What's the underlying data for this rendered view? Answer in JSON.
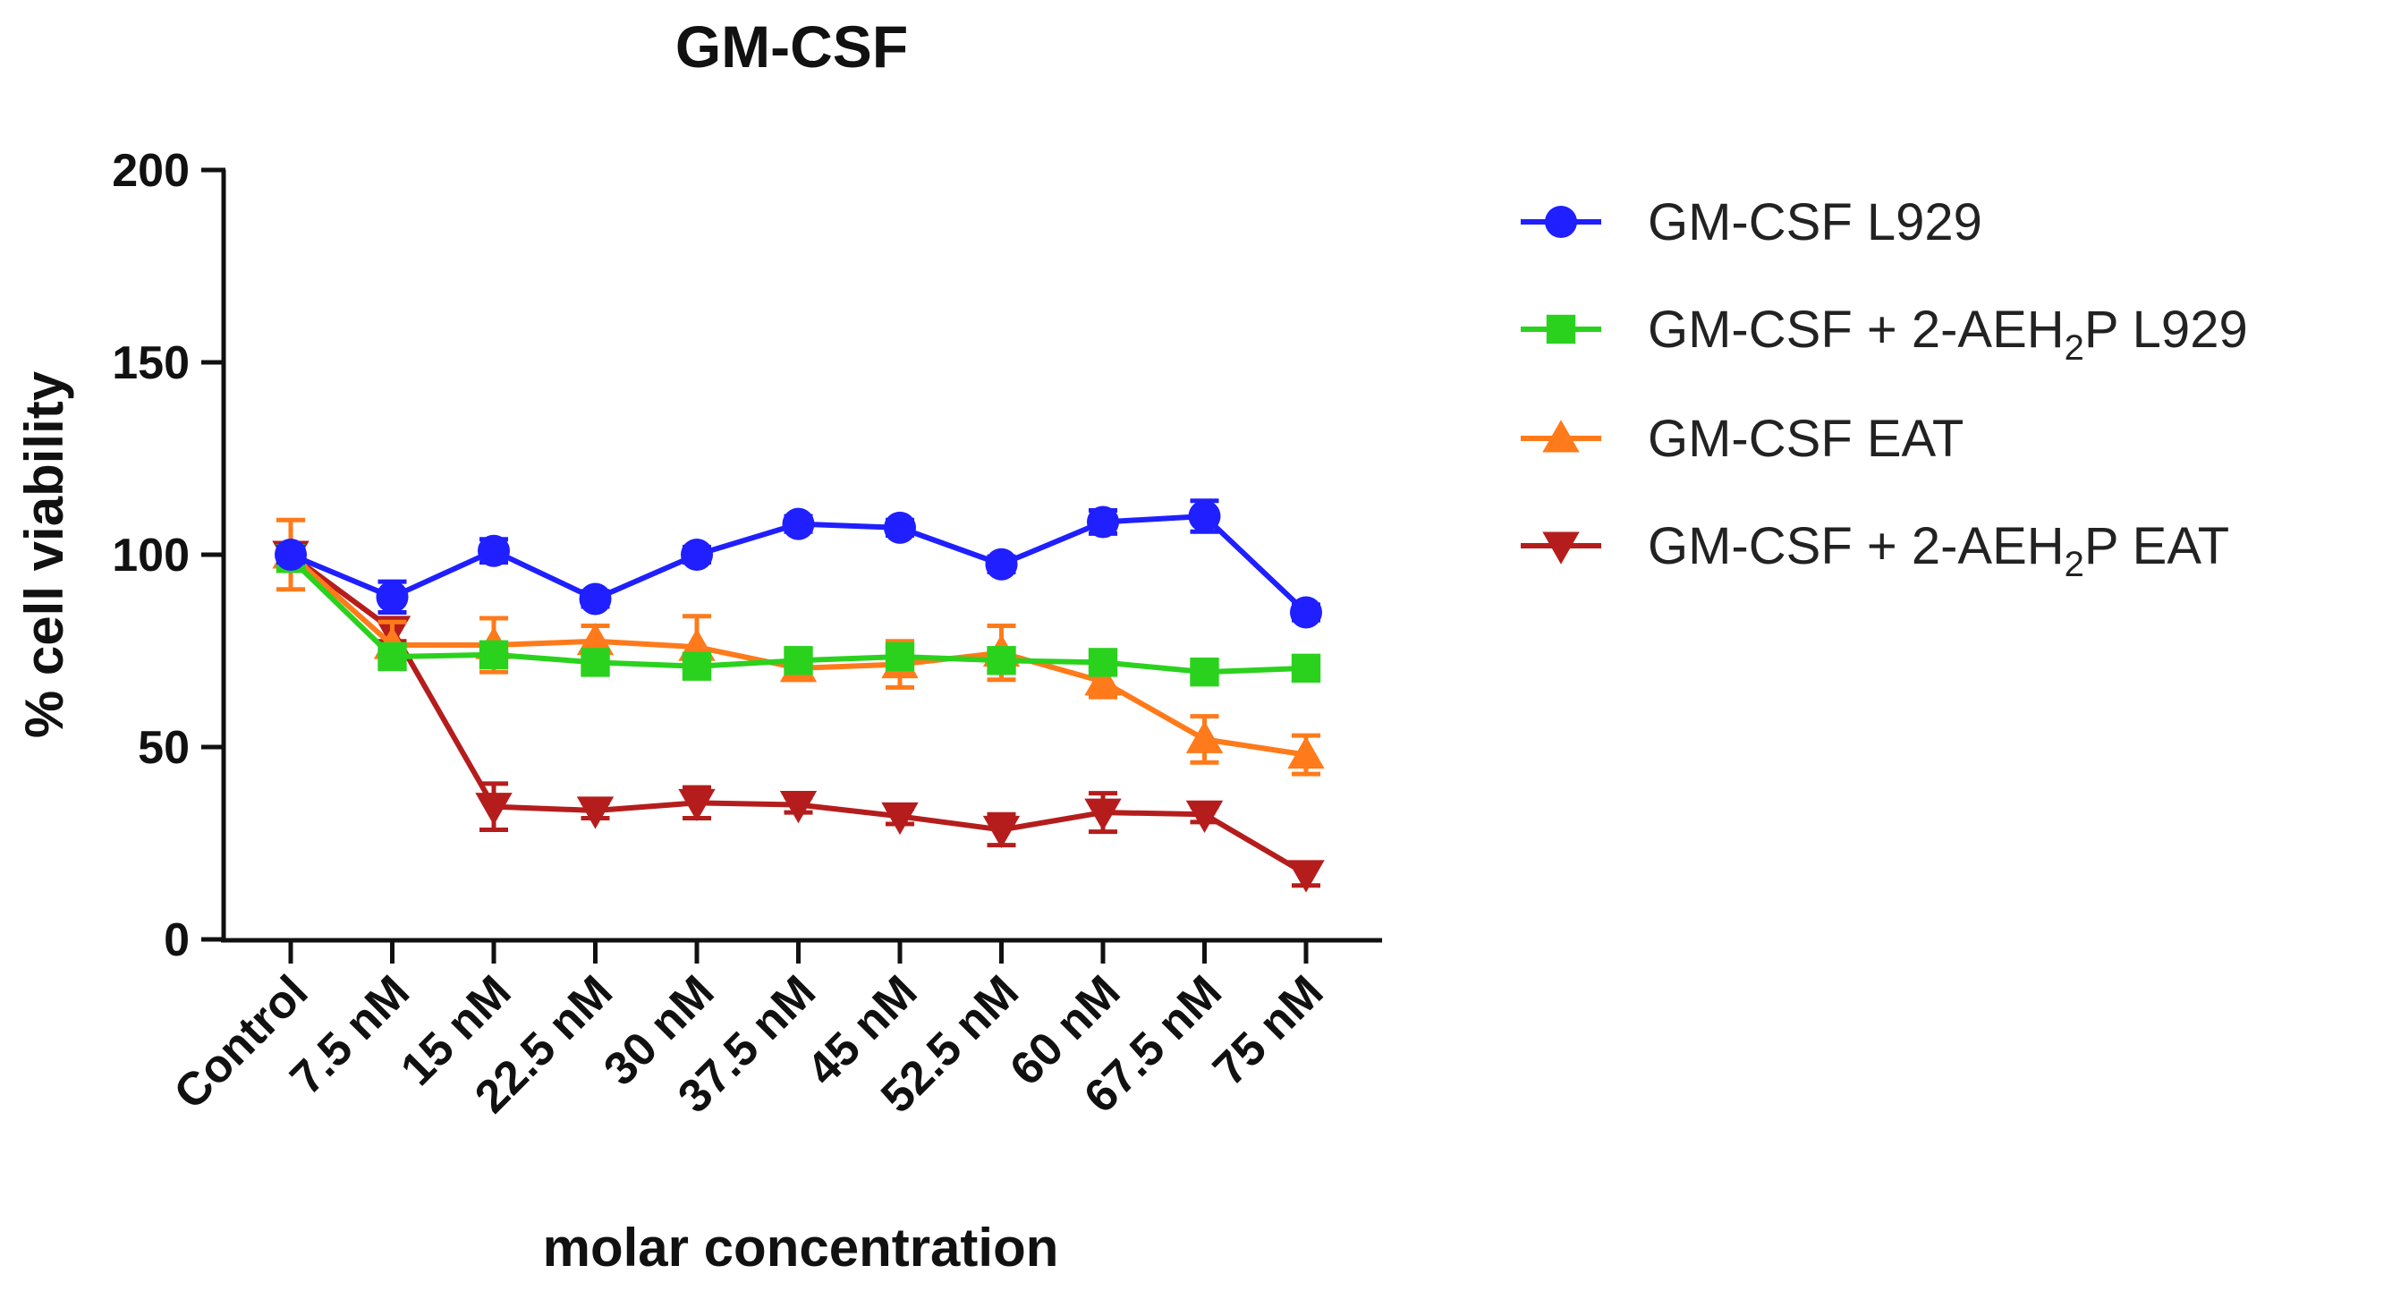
{
  "chart_data": {
    "type": "line",
    "title": "GM-CSF",
    "xlabel": "molar concentration",
    "ylabel": "% cell viability",
    "ylim": [
      0,
      200
    ],
    "yticks": [
      0,
      50,
      100,
      150,
      200
    ],
    "categories": [
      "Control",
      "7.5 nM",
      "15 nM",
      "22.5 nM",
      "30 nM",
      "37.5 nM",
      "45 nM",
      "52.5 nM",
      "60 nM",
      "67.5 nM",
      "75 nM"
    ],
    "legend_position": "right",
    "series": [
      {
        "name_main": "GM-CSF L929",
        "name_sub": "",
        "name_tail": "",
        "color": "#1f1fff",
        "marker": "circle",
        "values": [
          100,
          89,
          101,
          88.5,
          100,
          108,
          107,
          97.5,
          108.5,
          110,
          85
        ],
        "errors": [
          2,
          4,
          3,
          2,
          2,
          2,
          2,
          2,
          3,
          4,
          2
        ]
      },
      {
        "name_main": "GM-CSF + 2-AEH",
        "name_sub": "2",
        "name_tail": "P L929",
        "color": "#2ad21e",
        "marker": "square",
        "values": [
          99,
          73.5,
          74,
          72,
          71,
          72.5,
          73.5,
          72.5,
          72,
          69.5,
          70.5
        ],
        "errors": [
          2,
          2,
          2,
          2,
          2,
          2,
          2,
          2,
          2,
          2,
          2
        ]
      },
      {
        "name_main": "GM-CSF EAT",
        "name_sub": "",
        "name_tail": "",
        "color": "#ff7a1a",
        "marker": "triangle-up",
        "values": [
          100,
          76.5,
          76.5,
          77.5,
          76,
          70.5,
          71.5,
          74.5,
          67,
          52,
          48
        ],
        "errors": [
          9,
          6,
          7,
          4,
          8,
          2,
          6,
          7,
          4,
          6,
          5
        ]
      },
      {
        "name_main": "GM-CSF + 2-AEH",
        "name_sub": "2",
        "name_tail": "P EAT",
        "color": "#b51d1d",
        "marker": "triangle-down",
        "values": [
          100,
          80.5,
          34.5,
          33.5,
          35.5,
          35,
          32,
          28.5,
          33,
          32.5,
          17
        ],
        "errors": [
          3,
          3,
          6,
          2,
          4,
          2,
          2,
          4,
          5,
          2,
          3
        ]
      }
    ]
  }
}
